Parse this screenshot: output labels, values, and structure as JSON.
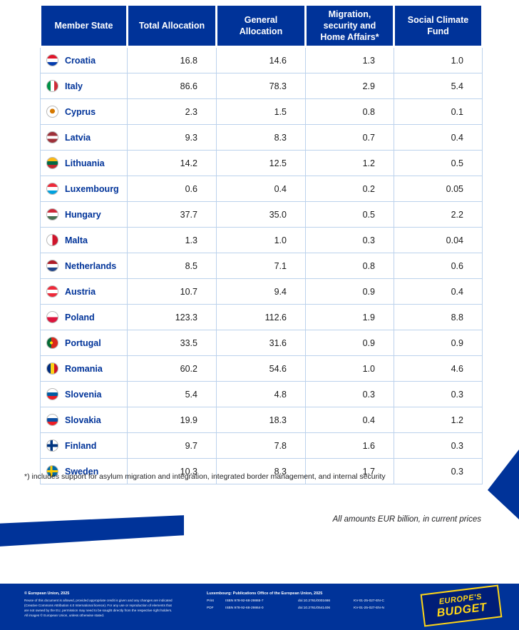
{
  "page": {
    "accent_blue": "#003399",
    "accent_yellow": "#ffd617",
    "grid_line": "#bcd2ec",
    "background": "#ffffff"
  },
  "table": {
    "headers": [
      "Member State",
      "Total Allocation",
      "General Allocation",
      "Migration, security and Home Affairs*",
      "Social Climate Fund"
    ],
    "rows": [
      {
        "country": "Croatia",
        "flag": "croatia",
        "values": [
          "16.8",
          "14.6",
          "1.3",
          "1.0"
        ]
      },
      {
        "country": "Italy",
        "flag": "italy",
        "values": [
          "86.6",
          "78.3",
          "2.9",
          "5.4"
        ]
      },
      {
        "country": "Cyprus",
        "flag": "cyprus",
        "values": [
          "2.3",
          "1.5",
          "0.8",
          "0.1"
        ]
      },
      {
        "country": "Latvia",
        "flag": "latvia",
        "values": [
          "9.3",
          "8.3",
          "0.7",
          "0.4"
        ]
      },
      {
        "country": "Lithuania",
        "flag": "lithuania",
        "values": [
          "14.2",
          "12.5",
          "1.2",
          "0.5"
        ]
      },
      {
        "country": "Luxembourg",
        "flag": "luxembourg",
        "values": [
          "0.6",
          "0.4",
          "0.2",
          "0.05"
        ]
      },
      {
        "country": "Hungary",
        "flag": "hungary",
        "values": [
          "37.7",
          "35.0",
          "0.5",
          "2.2"
        ]
      },
      {
        "country": "Malta",
        "flag": "malta",
        "values": [
          "1.3",
          "1.0",
          "0.3",
          "0.04"
        ]
      },
      {
        "country": "Netherlands",
        "flag": "netherlands",
        "values": [
          "8.5",
          "7.1",
          "0.8",
          "0.6"
        ]
      },
      {
        "country": "Austria",
        "flag": "austria",
        "values": [
          "10.7",
          "9.4",
          "0.9",
          "0.4"
        ]
      },
      {
        "country": "Poland",
        "flag": "poland",
        "values": [
          "123.3",
          "112.6",
          "1.9",
          "8.8"
        ]
      },
      {
        "country": "Portugal",
        "flag": "portugal",
        "values": [
          "33.5",
          "31.6",
          "0.9",
          "0.9"
        ]
      },
      {
        "country": "Romania",
        "flag": "romania",
        "values": [
          "60.2",
          "54.6",
          "1.0",
          "4.6"
        ]
      },
      {
        "country": "Slovenia",
        "flag": "slovenia",
        "values": [
          "5.4",
          "4.8",
          "0.3",
          "0.3"
        ]
      },
      {
        "country": "Slovakia",
        "flag": "slovakia",
        "values": [
          "19.9",
          "18.3",
          "0.4",
          "1.2"
        ]
      },
      {
        "country": "Finland",
        "flag": "finland",
        "values": [
          "9.7",
          "7.8",
          "1.6",
          "0.3"
        ]
      },
      {
        "country": "Sweden",
        "flag": "sweden",
        "values": [
          "10.3",
          "8.3",
          "1.7",
          "0.3"
        ]
      }
    ]
  },
  "flag_styles": {
    "croatia": "linear-gradient(180deg, #e0162b 33%, #ffffff 33%, #ffffff 66%, #043cae 66%)",
    "italy": "linear-gradient(90deg, #009246 33%, #ffffff 33%, #ffffff 66%, #ce2b37 66%)",
    "cyprus": "radial-gradient(circle at 50% 45%, #d57800 30%, #ffffff 32%)",
    "latvia": "linear-gradient(180deg, #9e3039 38%, #ffffff 38%, #ffffff 62%, #9e3039 62%)",
    "lithuania": "linear-gradient(180deg, #fdb913 33%, #006a44 33%, #006a44 66%, #c1272d 66%)",
    "luxembourg": "linear-gradient(180deg, #ed2939 33%, #ffffff 33%, #ffffff 66%, #00a1de 66%)",
    "hungary": "linear-gradient(180deg, #ce2939 33%, #ffffff 33%, #ffffff 66%, #477050 66%)",
    "malta": "linear-gradient(90deg, #ffffff 50%, #cf142b 50%)",
    "netherlands": "linear-gradient(180deg, #ae1c28 33%, #ffffff 33%, #ffffff 66%, #21468b 66%)",
    "austria": "linear-gradient(180deg, #ed2939 33%, #ffffff 33%, #ffffff 66%, #ed2939 66%)",
    "poland": "linear-gradient(180deg, #ffffff 50%, #dc143c 50%)",
    "portugal": "radial-gradient(circle at 40% 50%, #ffe900 16%, rgba(0,0,0,0) 17%), linear-gradient(90deg, #046a38 40%, #da291c 40%)",
    "romania": "linear-gradient(90deg, #002b7f 33%, #fcd116 33%, #fcd116 66%, #ce1126 66%)",
    "slovenia": "linear-gradient(180deg, #ffffff 33%, #005da4 33%, #005da4 66%, #ed1c24 66%)",
    "slovakia": "linear-gradient(180deg, #ffffff 33%, #0b4ea2 33%, #0b4ea2 66%, #ee1c25 66%)",
    "finland": "linear-gradient(90deg, rgba(0,0,0,0) 30%, #003580 30%, #003580 52%, rgba(0,0,0,0) 52%), linear-gradient(180deg, #ffffff 38%, #003580 38%, #003580 62%, #ffffff 62%)",
    "sweden": "linear-gradient(90deg, rgba(0,0,0,0) 30%, #fecc02 30%, #fecc02 50%, rgba(0,0,0,0) 50%), linear-gradient(180deg, #006aa7 40%, #fecc02 40%, #fecc02 60%, #006aa7 60%)"
  },
  "footnote": "*) includes support for asylum migration and integration, integrated border management, and internal security",
  "amounts_note": "All amounts EUR billion, in current prices",
  "footer": {
    "copyright": "© European Union, 2025",
    "reuse_notice": "Reuse of this document is allowed, provided appropriate credit is given and any changes are indicated (Creative Commons Attribution 4.0 International licence). For any use or reproduction of elements that are not owned by the EU, permission may need to be sought directly from the respective right holders. All images © European Union, unless otherwise stated.",
    "publisher": "Luxembourg: Publications Office of the European Union, 2025",
    "editions": [
      {
        "format": "Print",
        "isbn": "ISBN 978-92-68-29865-7",
        "doi": "doi:10.2761/0001666",
        "catalogue": "KV-01-25-027-EN-C"
      },
      {
        "format": "PDF",
        "isbn": "ISBN 978-92-68-29864-0",
        "doi": "doi:10.2761/0541406",
        "catalogue": "KV-01-25-027-EN-N"
      }
    ],
    "logo_line1": "EUROPE'S",
    "logo_line2": "BUDGET"
  }
}
